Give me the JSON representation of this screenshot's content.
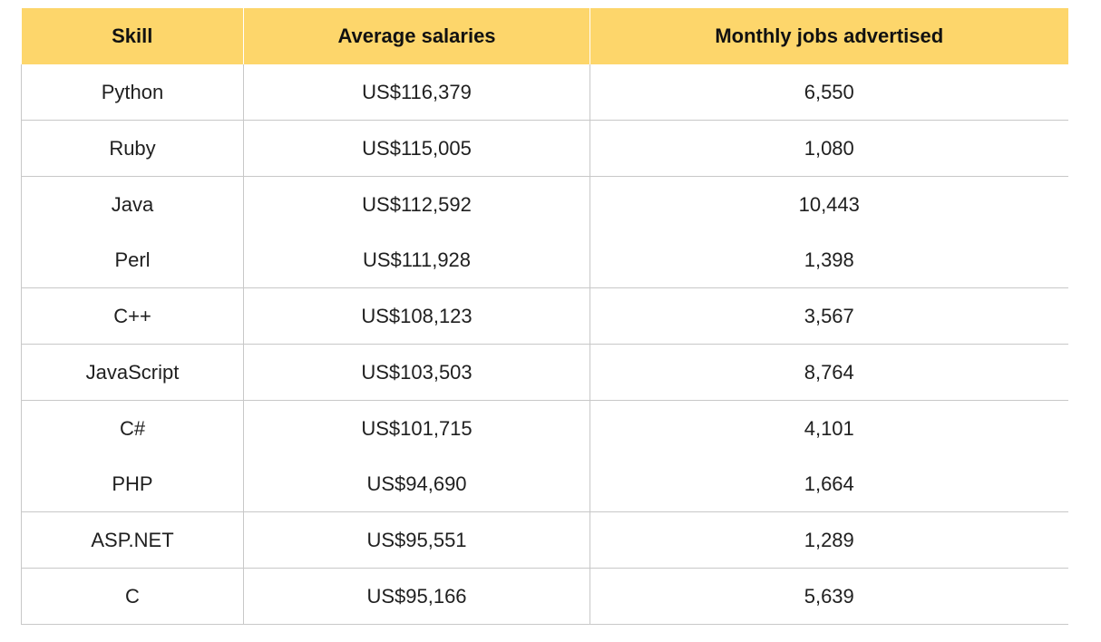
{
  "table": {
    "headers": {
      "skill": "Skill",
      "salary": "Average salaries",
      "jobs": "Monthly jobs advertised"
    },
    "rows": [
      {
        "skill": "Python",
        "salary": "US$116,379",
        "jobs": "6,550"
      },
      {
        "skill": "Ruby",
        "salary": "US$115,005",
        "jobs": "1,080"
      },
      {
        "skill": "Java",
        "salary": "US$112,592",
        "jobs": "10,443"
      },
      {
        "skill": "Perl",
        "salary": "US$111,928",
        "jobs": "1,398"
      },
      {
        "skill": "C++",
        "salary": "US$108,123",
        "jobs": "3,567"
      },
      {
        "skill": "JavaScript",
        "salary": "US$103,503",
        "jobs": "8,764"
      },
      {
        "skill": "C#",
        "salary": "US$101,715",
        "jobs": "4,101"
      },
      {
        "skill": "PHP",
        "salary": "US$94,690",
        "jobs": "1,664"
      },
      {
        "skill": "ASP.NET",
        "salary": "US$95,551",
        "jobs": "1,289"
      },
      {
        "skill": "C",
        "salary": "US$95,166",
        "jobs": "5,639"
      }
    ]
  },
  "colors": {
    "header_background": "#fdd66b",
    "grid_line": "#c8c8c8"
  }
}
